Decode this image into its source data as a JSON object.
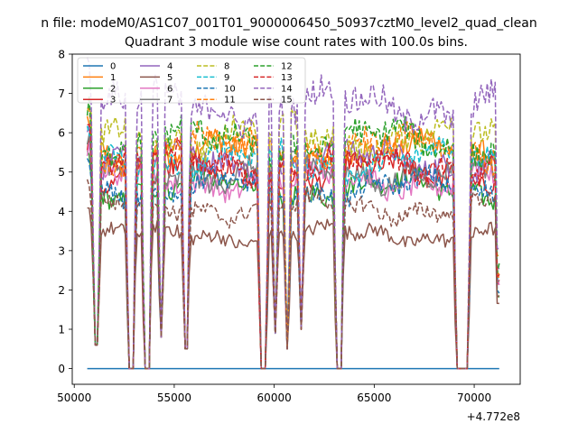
{
  "chart_data": {
    "type": "line",
    "suptitle": "n file: modeM0/AS1C07_001T01_9000006450_50937cztM0_level2_quad_clean",
    "title": "Quadrant 3 module wise count rates with 100.0s bins.",
    "xlabel": "",
    "ylabel": "",
    "x_offset_label": "+4.772e8",
    "xlim": [
      49900,
      72300
    ],
    "ylim": [
      -0.4,
      8.0
    ],
    "x_ticks": [
      50000,
      55000,
      60000,
      65000,
      70000
    ],
    "y_ticks": [
      0,
      1,
      2,
      3,
      4,
      5,
      6,
      7,
      8
    ],
    "x_start": 50650,
    "x_end": 71300,
    "bin": 100,
    "gaps": [
      [
        51000,
        51200,
        0.6
      ],
      [
        52700,
        52950,
        0.0
      ],
      [
        53500,
        53750,
        0.0
      ],
      [
        54300,
        54400,
        0.8
      ],
      [
        55500,
        55650,
        0.5
      ],
      [
        59300,
        59600,
        0.0
      ],
      [
        60000,
        60100,
        0.9
      ],
      [
        60600,
        60700,
        0.5
      ],
      [
        61300,
        61400,
        1.0
      ],
      [
        63100,
        63350,
        0.0
      ],
      [
        69100,
        69700,
        0.0
      ]
    ],
    "legend": {
      "location": "upper-left",
      "columns": 4
    },
    "series": [
      {
        "name": "0",
        "color": "#1f77b4",
        "dash": "solid",
        "level": 0.0
      },
      {
        "name": "1",
        "color": "#ff7f0e",
        "dash": "solid",
        "level": 5.5
      },
      {
        "name": "2",
        "color": "#2ca02c",
        "dash": "solid",
        "level": 4.6
      },
      {
        "name": "3",
        "color": "#d62728",
        "dash": "solid",
        "level": 5.0
      },
      {
        "name": "4",
        "color": "#9467bd",
        "dash": "solid",
        "level": 5.3
      },
      {
        "name": "5",
        "color": "#8c564b",
        "dash": "solid",
        "level": 3.4
      },
      {
        "name": "6",
        "color": "#e377c2",
        "dash": "solid",
        "level": 4.8
      },
      {
        "name": "7",
        "color": "#7f7f7f",
        "dash": "solid",
        "level": 5.0
      },
      {
        "name": "8",
        "color": "#bcbd22",
        "dash": "dashed",
        "level": 5.9
      },
      {
        "name": "9",
        "color": "#17becf",
        "dash": "dashed",
        "level": 5.3
      },
      {
        "name": "10",
        "color": "#1f77b4",
        "dash": "dashed",
        "level": 4.6
      },
      {
        "name": "11",
        "color": "#ff7f0e",
        "dash": "dashed",
        "level": 5.6
      },
      {
        "name": "12",
        "color": "#2ca02c",
        "dash": "dashed",
        "level": 5.8
      },
      {
        "name": "13",
        "color": "#d62728",
        "dash": "dashed",
        "level": 5.2
      },
      {
        "name": "14",
        "color": "#9467bd",
        "dash": "dashed",
        "level": 6.7
      },
      {
        "name": "15",
        "color": "#8c564b",
        "dash": "dashed",
        "level": 4.1
      }
    ]
  }
}
